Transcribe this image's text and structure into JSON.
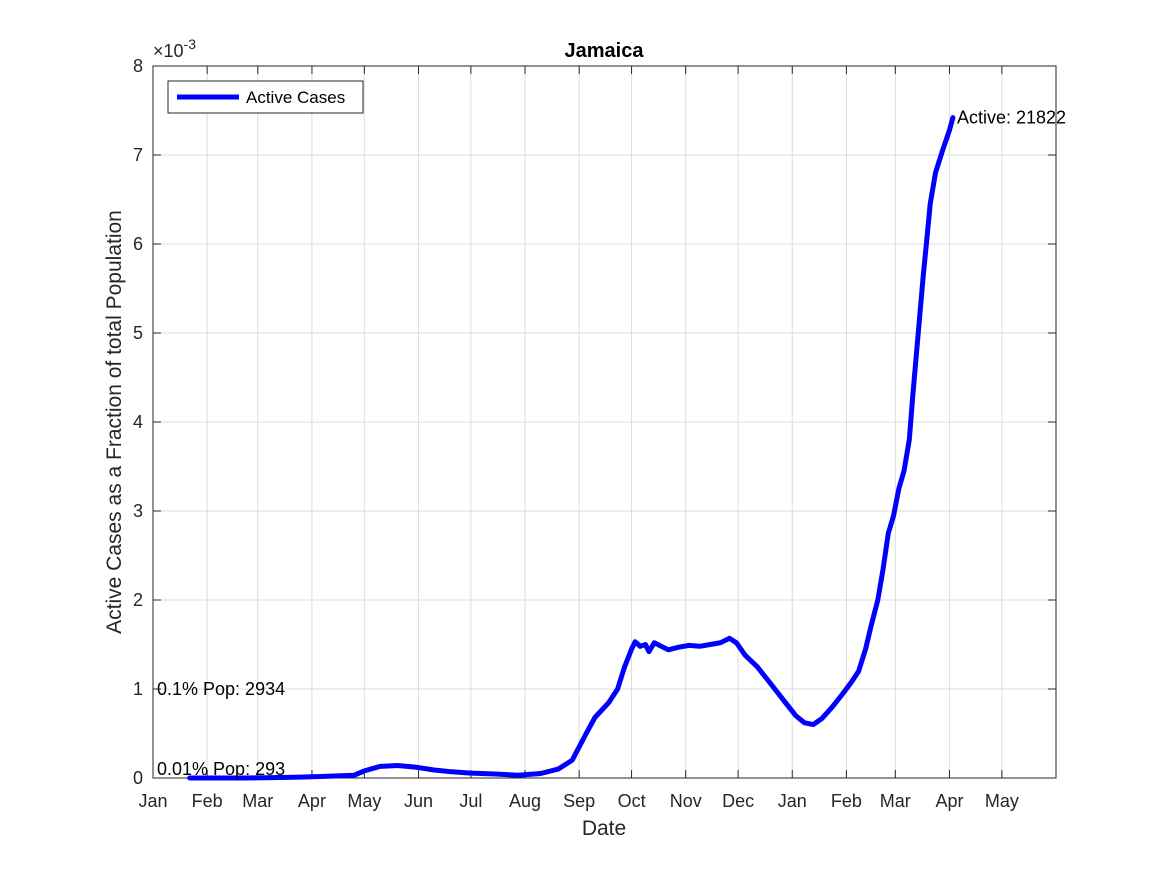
{
  "chart_data": {
    "type": "line",
    "title": "Jamaica",
    "xlabel": "Date",
    "ylabel": "Active Cases as a Fraction of total Population",
    "y_exponent_label": "×10",
    "y_exponent_power": "-3",
    "ylim": [
      0,
      8
    ],
    "y_ticks": [
      0,
      1,
      2,
      3,
      4,
      5,
      6,
      7,
      8
    ],
    "xlim": [
      "2020-01-01",
      "2021-06-01"
    ],
    "x_ticks": [
      {
        "date": "2020-01-01",
        "label": "Jan"
      },
      {
        "date": "2020-02-01",
        "label": "Feb"
      },
      {
        "date": "2020-03-01",
        "label": "Mar"
      },
      {
        "date": "2020-04-01",
        "label": "Apr"
      },
      {
        "date": "2020-05-01",
        "label": "May"
      },
      {
        "date": "2020-06-01",
        "label": "Jun"
      },
      {
        "date": "2020-07-01",
        "label": "Jul"
      },
      {
        "date": "2020-08-01",
        "label": "Aug"
      },
      {
        "date": "2020-09-01",
        "label": "Sep"
      },
      {
        "date": "2020-10-01",
        "label": "Oct"
      },
      {
        "date": "2020-11-01",
        "label": "Nov"
      },
      {
        "date": "2020-12-01",
        "label": "Dec"
      },
      {
        "date": "2021-01-01",
        "label": "Jan"
      },
      {
        "date": "2021-02-01",
        "label": "Feb"
      },
      {
        "date": "2021-03-01",
        "label": "Mar"
      },
      {
        "date": "2021-04-01",
        "label": "Apr"
      },
      {
        "date": "2021-05-01",
        "label": "May"
      }
    ],
    "grid": true,
    "legend_location": "top-left",
    "series": [
      {
        "name": "Active Cases",
        "color": "#0000ff",
        "points": [
          [
            "2020-01-22",
            0.0
          ],
          [
            "2020-02-20",
            0.0
          ],
          [
            "2020-03-10",
            0.005
          ],
          [
            "2020-03-25",
            0.01
          ],
          [
            "2020-04-10",
            0.02
          ],
          [
            "2020-04-25",
            0.03
          ],
          [
            "2020-05-01",
            0.08
          ],
          [
            "2020-05-10",
            0.13
          ],
          [
            "2020-05-20",
            0.14
          ],
          [
            "2020-05-31",
            0.12
          ],
          [
            "2020-06-10",
            0.09
          ],
          [
            "2020-06-20",
            0.07
          ],
          [
            "2020-07-01",
            0.055
          ],
          [
            "2020-07-15",
            0.045
          ],
          [
            "2020-07-28",
            0.03
          ],
          [
            "2020-08-10",
            0.05
          ],
          [
            "2020-08-20",
            0.1
          ],
          [
            "2020-08-28",
            0.2
          ],
          [
            "2020-09-05",
            0.5
          ],
          [
            "2020-09-10",
            0.68
          ],
          [
            "2020-09-18",
            0.85
          ],
          [
            "2020-09-23",
            1.0
          ],
          [
            "2020-09-27",
            1.25
          ],
          [
            "2020-10-01",
            1.45
          ],
          [
            "2020-10-03",
            1.53
          ],
          [
            "2020-10-06",
            1.48
          ],
          [
            "2020-10-09",
            1.5
          ],
          [
            "2020-10-11",
            1.42
          ],
          [
            "2020-10-14",
            1.52
          ],
          [
            "2020-10-18",
            1.48
          ],
          [
            "2020-10-22",
            1.44
          ],
          [
            "2020-10-28",
            1.47
          ],
          [
            "2020-11-03",
            1.49
          ],
          [
            "2020-11-09",
            1.48
          ],
          [
            "2020-11-15",
            1.5
          ],
          [
            "2020-11-21",
            1.52
          ],
          [
            "2020-11-26",
            1.57
          ],
          [
            "2020-11-30",
            1.52
          ],
          [
            "2020-12-05",
            1.38
          ],
          [
            "2020-12-12",
            1.25
          ],
          [
            "2020-12-20",
            1.05
          ],
          [
            "2020-12-28",
            0.85
          ],
          [
            "2021-01-03",
            0.7
          ],
          [
            "2021-01-08",
            0.62
          ],
          [
            "2021-01-13",
            0.6
          ],
          [
            "2021-01-18",
            0.67
          ],
          [
            "2021-01-24",
            0.8
          ],
          [
            "2021-01-30",
            0.95
          ],
          [
            "2021-02-04",
            1.08
          ],
          [
            "2021-02-08",
            1.2
          ],
          [
            "2021-02-12",
            1.45
          ],
          [
            "2021-02-15",
            1.7
          ],
          [
            "2021-02-19",
            2.0
          ],
          [
            "2021-02-22",
            2.35
          ],
          [
            "2021-02-25",
            2.75
          ],
          [
            "2021-02-28",
            2.95
          ],
          [
            "2021-03-03",
            3.25
          ],
          [
            "2021-03-06",
            3.45
          ],
          [
            "2021-03-09",
            3.8
          ],
          [
            "2021-03-11",
            4.3
          ],
          [
            "2021-03-13",
            4.75
          ],
          [
            "2021-03-15",
            5.2
          ],
          [
            "2021-03-17",
            5.65
          ],
          [
            "2021-03-19",
            6.05
          ],
          [
            "2021-03-21",
            6.45
          ],
          [
            "2021-03-24",
            6.8
          ],
          [
            "2021-03-28",
            7.05
          ],
          [
            "2021-04-01",
            7.28
          ],
          [
            "2021-04-03",
            7.42
          ]
        ]
      }
    ],
    "annotations": [
      {
        "text": "Active: 21822",
        "x": "2021-04-03",
        "y": 7.42,
        "anchor": "right"
      },
      {
        "text": "0.1% Pop: 2934",
        "x": "2020-01-01",
        "y": 1.0,
        "anchor": "right"
      },
      {
        "text": "0.01% Pop: 293",
        "x": "2020-01-01",
        "y": 0.1,
        "anchor": "right"
      }
    ]
  }
}
